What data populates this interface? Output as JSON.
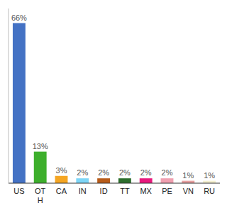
{
  "chart_data": {
    "type": "bar",
    "categories": [
      "US",
      "OT\nH",
      "CA",
      "IN",
      "ID",
      "TT",
      "MX",
      "PE",
      "VN",
      "RU"
    ],
    "values": [
      66,
      13,
      3,
      2,
      2,
      2,
      2,
      2,
      1,
      1
    ],
    "value_labels": [
      "66%",
      "13%",
      "3%",
      "2%",
      "2%",
      "2%",
      "2%",
      "2%",
      "1%",
      "1%"
    ],
    "colors": [
      "#4472c4",
      "#3daf2c",
      "#f5a623",
      "#7ed6f7",
      "#b85c1a",
      "#2d6e2d",
      "#e8197d",
      "#f0a0b0",
      "#e8a0a0",
      "#f5f0d0"
    ],
    "ylim": [
      0,
      72
    ],
    "data_labels": true,
    "tick_labels": "x",
    "grid": false
  }
}
